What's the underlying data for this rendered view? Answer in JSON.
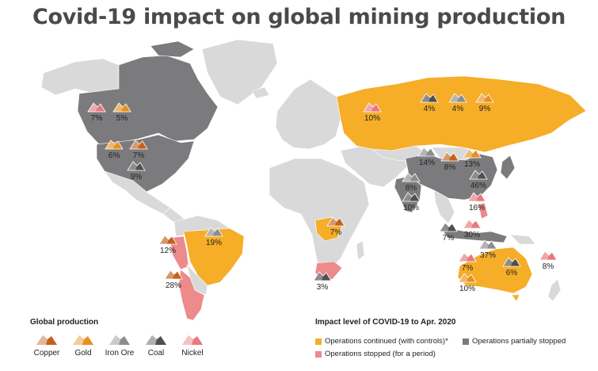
{
  "title": "Covid-19 impact on global mining production",
  "colors": {
    "continued": "#f6ad27",
    "partial": "#7b7b7d",
    "stopped": "#ec8a8c",
    "unaffected": "#d9d9d9",
    "copper": "#c2621b",
    "gold": "#e8901f",
    "iron_ore": "#8d8d8f",
    "coal": "#505052",
    "nickel": "#e8797d"
  },
  "legend": {
    "production_title": "Global production",
    "commodities": [
      {
        "key": "copper",
        "label": "Copper",
        "icon": "copper-pile-icon"
      },
      {
        "key": "gold",
        "label": "Gold",
        "icon": "gold-pile-icon"
      },
      {
        "key": "iron_ore",
        "label": "Iron Ore",
        "icon": "iron-ore-pile-icon"
      },
      {
        "key": "coal",
        "label": "Coal",
        "icon": "coal-pile-icon"
      },
      {
        "key": "nickel",
        "label": "Nickel",
        "icon": "nickel-pile-icon"
      }
    ],
    "impact_title": "Impact level of COVID-19 to Apr. 2020",
    "impact_items": [
      {
        "key": "continued",
        "label": "Operations continued (with controls)*"
      },
      {
        "key": "partial",
        "label": "Operations partially stopped"
      },
      {
        "key": "stopped",
        "label": "Operations stopped (for a period)"
      }
    ]
  },
  "markers": [
    {
      "region": "Canada",
      "commodity": "nickel",
      "share": "7%"
    },
    {
      "region": "Canada",
      "commodity": "gold",
      "share": "5%"
    },
    {
      "region": "USA",
      "commodity": "gold",
      "share": "6%"
    },
    {
      "region": "USA",
      "commodity": "copper",
      "share": "7%"
    },
    {
      "region": "USA",
      "commodity": "coal",
      "share": "9%"
    },
    {
      "region": "Peru",
      "commodity": "copper",
      "share": "12%"
    },
    {
      "region": "Brazil",
      "commodity": "iron_ore",
      "share": "19%"
    },
    {
      "region": "Chile",
      "commodity": "copper",
      "share": "28%"
    },
    {
      "region": "DR Congo",
      "commodity": "copper",
      "share": "7%"
    },
    {
      "region": "South Africa",
      "commodity": "coal",
      "share": "3%"
    },
    {
      "region": "Russia",
      "commodity": "nickel",
      "share": "10%"
    },
    {
      "region": "Russia",
      "commodity": "coal",
      "share": "4%"
    },
    {
      "region": "Russia",
      "commodity": "iron_ore",
      "share": "4%"
    },
    {
      "region": "Russia",
      "commodity": "gold",
      "share": "9%"
    },
    {
      "region": "China",
      "commodity": "iron_ore",
      "share": "14%"
    },
    {
      "region": "China",
      "commodity": "copper",
      "share": "8%"
    },
    {
      "region": "China",
      "commodity": "gold",
      "share": "13%"
    },
    {
      "region": "China",
      "commodity": "coal",
      "share": "46%"
    },
    {
      "region": "India",
      "commodity": "iron_ore",
      "share": "8%"
    },
    {
      "region": "India",
      "commodity": "coal",
      "share": "10%"
    },
    {
      "region": "Philippines",
      "commodity": "nickel",
      "share": "16%"
    },
    {
      "region": "Indonesia",
      "commodity": "coal",
      "share": "7%"
    },
    {
      "region": "Indonesia",
      "commodity": "nickel",
      "share": "30%"
    },
    {
      "region": "Australia",
      "commodity": "iron_ore",
      "share": "37%"
    },
    {
      "region": "Australia",
      "commodity": "nickel",
      "share": "7%"
    },
    {
      "region": "Australia",
      "commodity": "coal",
      "share": "6%"
    },
    {
      "region": "Australia",
      "commodity": "gold",
      "share": "10%"
    },
    {
      "region": "New Caledonia",
      "commodity": "nickel",
      "share": "8%"
    }
  ]
}
